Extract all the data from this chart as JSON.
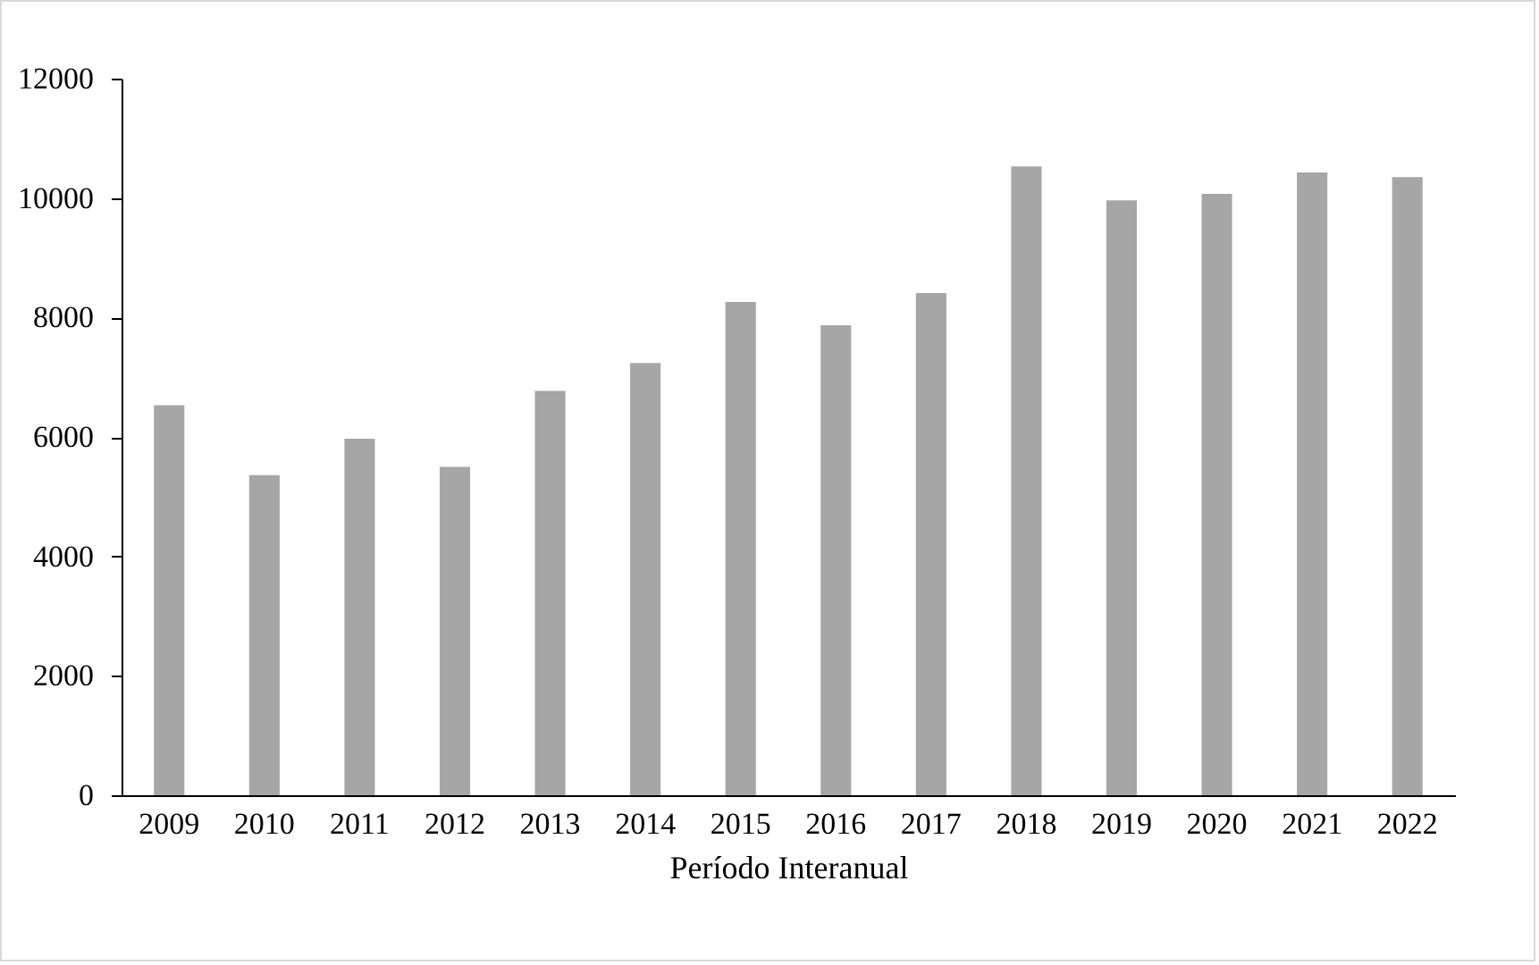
{
  "chart_data": {
    "type": "bar",
    "xlabel": "Período Interanual",
    "categories": [
      "2009",
      "2010",
      "2011",
      "2012",
      "2013",
      "2014",
      "2015",
      "2016",
      "2017",
      "2018",
      "2019",
      "2020",
      "2021",
      "2022"
    ],
    "values": [
      6530,
      5360,
      5970,
      5500,
      6770,
      7240,
      8260,
      7870,
      8410,
      10530,
      9960,
      10070,
      10430,
      10350
    ],
    "color": "#a6a6a6",
    "ylim": [
      0,
      12000
    ],
    "yticks": [
      0,
      2000,
      4000,
      6000,
      8000,
      10000,
      12000
    ],
    "grid": false
  }
}
